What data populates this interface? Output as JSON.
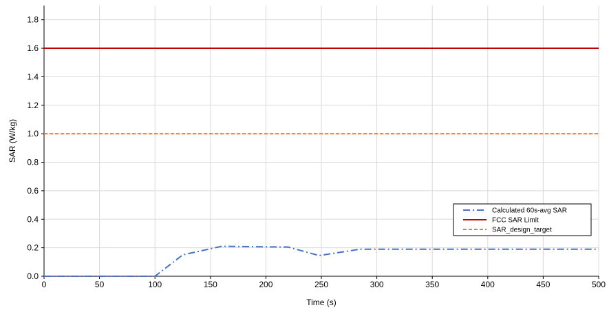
{
  "chart_data": {
    "type": "line",
    "title": "",
    "xlabel": "Time (s)",
    "ylabel": "SAR (W/kg)",
    "xlim": [
      0,
      500
    ],
    "ylim": [
      0,
      1.9
    ],
    "xticks": [
      0,
      50,
      100,
      150,
      200,
      250,
      300,
      350,
      400,
      450,
      500
    ],
    "yticks": [
      0.0,
      0.2,
      0.4,
      0.6,
      0.8,
      1.0,
      1.2,
      1.4,
      1.6,
      1.8
    ],
    "ytick_labels": [
      "0.0",
      "0.2",
      "0.4",
      "0.6",
      "0.8",
      "1.0",
      "1.2",
      "1.4",
      "1.6",
      "1.8"
    ],
    "xtick_labels": [
      "0",
      "50",
      "100",
      "150",
      "200",
      "250",
      "300",
      "350",
      "400",
      "450",
      "500"
    ],
    "grid": true,
    "legend_position": "bottom-right",
    "series": [
      {
        "name": "Calculated 60s-avg SAR",
        "color": "#4472C4",
        "style": "dash-dot",
        "x": [
          0,
          100,
          125,
          160,
          220,
          248,
          285,
          500
        ],
        "y": [
          0.0,
          0.0,
          0.15,
          0.21,
          0.205,
          0.145,
          0.19,
          0.19
        ]
      },
      {
        "name": "FCC SAR Limit",
        "color": "#C00000",
        "style": "solid",
        "x": [
          0,
          500
        ],
        "y": [
          1.6,
          1.6
        ]
      },
      {
        "name": "SAR_design_target",
        "color": "#ED7D31",
        "style": "dashed",
        "x": [
          0,
          500
        ],
        "y": [
          1.0,
          1.0
        ]
      }
    ]
  }
}
